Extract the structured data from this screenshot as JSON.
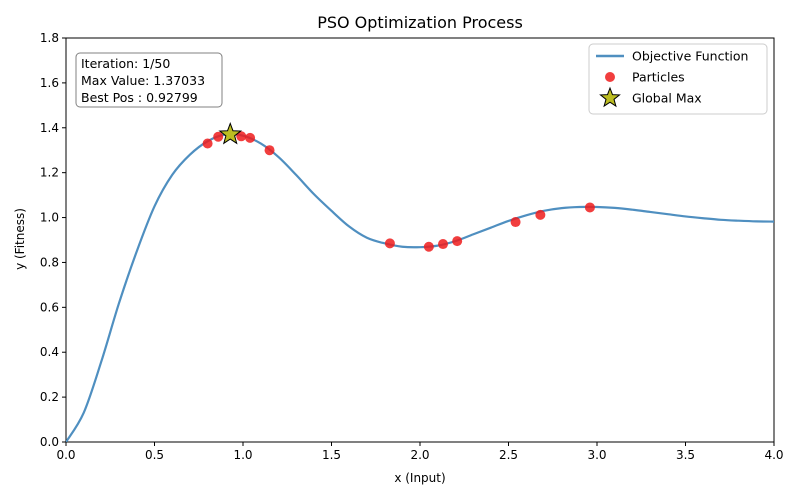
{
  "chart_data": {
    "type": "line",
    "title": "PSO Optimization Process",
    "xlabel": "x (Input)",
    "ylabel": "y (Fitness)",
    "xlim": [
      0.0,
      4.0
    ],
    "ylim": [
      0.0,
      1.8
    ],
    "xticks": [
      "0.0",
      "0.5",
      "1.0",
      "1.5",
      "2.0",
      "2.5",
      "3.0",
      "3.5",
      "4.0"
    ],
    "yticks": [
      "0.0",
      "0.2",
      "0.4",
      "0.6",
      "0.8",
      "1.0",
      "1.2",
      "1.4",
      "1.6",
      "1.8"
    ],
    "grid": false,
    "legend_position": "top-right",
    "annotation_position": "top-left",
    "annotation": {
      "line1": "Iteration: 1/50",
      "line2": "Max Value: 1.37033",
      "line3": "Best Pos : 0.92799"
    },
    "series": [
      {
        "name": "Objective Function",
        "kind": "line",
        "color": "#4f8fc0",
        "x": [
          0.0,
          0.1,
          0.2,
          0.3,
          0.4,
          0.5,
          0.6,
          0.7,
          0.8,
          0.9,
          1.0,
          1.1,
          1.2,
          1.3,
          1.4,
          1.5,
          1.6,
          1.7,
          1.8,
          1.9,
          2.0,
          2.1,
          2.2,
          2.3,
          2.4,
          2.5,
          2.6,
          2.7,
          2.8,
          2.9,
          3.0,
          3.1,
          3.2,
          3.3,
          3.4,
          3.5,
          3.6,
          3.7,
          3.8,
          3.9,
          4.0
        ],
        "y": [
          0.0,
          0.13,
          0.36,
          0.62,
          0.85,
          1.05,
          1.19,
          1.28,
          1.34,
          1.37,
          1.365,
          1.33,
          1.27,
          1.19,
          1.105,
          1.03,
          0.96,
          0.91,
          0.885,
          0.87,
          0.868,
          0.875,
          0.895,
          0.925,
          0.955,
          0.985,
          1.01,
          1.03,
          1.042,
          1.047,
          1.047,
          1.043,
          1.035,
          1.025,
          1.015,
          1.005,
          0.997,
          0.99,
          0.986,
          0.983,
          0.982
        ]
      },
      {
        "name": "Particles",
        "kind": "scatter",
        "color": "#ee1c1c",
        "x": [
          0.8,
          0.86,
          0.99,
          1.04,
          1.15,
          1.83,
          2.05,
          2.13,
          2.21,
          2.54,
          2.68,
          2.96
        ],
        "y": [
          1.33,
          1.36,
          1.362,
          1.355,
          1.3,
          0.885,
          0.87,
          0.882,
          0.895,
          0.98,
          1.012,
          1.045
        ]
      },
      {
        "name": "Global Max",
        "kind": "marker",
        "color": "#bcbd22",
        "x": [
          0.92799
        ],
        "y": [
          1.37033
        ]
      }
    ]
  }
}
